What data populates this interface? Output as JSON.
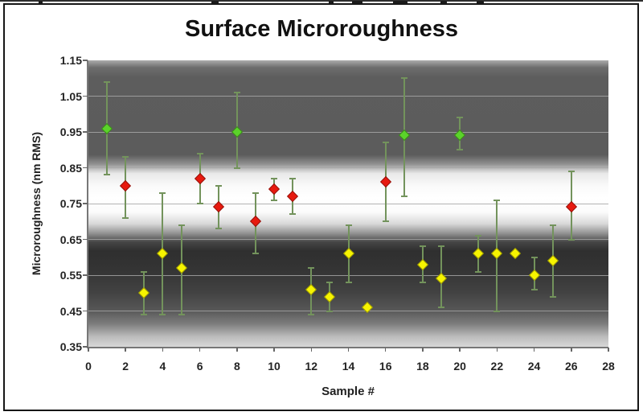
{
  "figure": {
    "title": "Surface Microroughness",
    "xlabel": "Sample #",
    "ylabel": "Microroughness (nm RMS)"
  },
  "chart_data": {
    "type": "scatter",
    "title": "Surface Microroughness",
    "xlabel": "Sample #",
    "ylabel": "Microroughness (nm RMS)",
    "xlim": [
      0,
      28
    ],
    "ylim": [
      0.35,
      1.15
    ],
    "x_ticks": [
      "0",
      "2",
      "4",
      "6",
      "8",
      "10",
      "12",
      "14",
      "16",
      "18",
      "20",
      "22",
      "24",
      "26",
      "28"
    ],
    "y_ticks": [
      "1.15",
      "1.05",
      "0.95",
      "0.85",
      "0.75",
      "0.65",
      "0.55",
      "0.45",
      "0.35"
    ],
    "grid": "horizontal gridlines every 0.10",
    "legend": "none",
    "marker": "diamond",
    "error_bars": "vertical, olive-green with caps",
    "marker_colors": {
      "green": "#5bd32a",
      "red": "#e71a0f",
      "yellow": "#f7f400"
    },
    "error_bar_color": "#73935c",
    "background_bands": [
      {
        "name": "upper-dark-band",
        "from": 1.15,
        "to": 0.86,
        "color": "#5c5c5c"
      },
      {
        "name": "middle-white-band",
        "from": 0.86,
        "to": 0.66,
        "color": "#ffffff"
      },
      {
        "name": "lower-dark-band",
        "from": 0.66,
        "to": 0.38,
        "color": "#3a3a3a"
      }
    ],
    "points": [
      {
        "sample": 1,
        "category": "green",
        "value": 0.96,
        "err_low": 0.83,
        "err_high": 1.09
      },
      {
        "sample": 2,
        "category": "red",
        "value": 0.8,
        "err_low": 0.71,
        "err_high": 0.88
      },
      {
        "sample": 3,
        "category": "yellow",
        "value": 0.5,
        "err_low": 0.44,
        "err_high": 0.56
      },
      {
        "sample": 4,
        "category": "yellow",
        "value": 0.61,
        "err_low": 0.44,
        "err_high": 0.78
      },
      {
        "sample": 5,
        "category": "yellow",
        "value": 0.57,
        "err_low": 0.44,
        "err_high": 0.69
      },
      {
        "sample": 6,
        "category": "red",
        "value": 0.82,
        "err_low": 0.75,
        "err_high": 0.89
      },
      {
        "sample": 7,
        "category": "red",
        "value": 0.74,
        "err_low": 0.68,
        "err_high": 0.8
      },
      {
        "sample": 8,
        "category": "green",
        "value": 0.95,
        "err_low": 0.85,
        "err_high": 1.06
      },
      {
        "sample": 9,
        "category": "red",
        "value": 0.7,
        "err_low": 0.61,
        "err_high": 0.78
      },
      {
        "sample": 10,
        "category": "red",
        "value": 0.79,
        "err_low": 0.76,
        "err_high": 0.82
      },
      {
        "sample": 11,
        "category": "red",
        "value": 0.77,
        "err_low": 0.72,
        "err_high": 0.82
      },
      {
        "sample": 12,
        "category": "yellow",
        "value": 0.51,
        "err_low": 0.44,
        "err_high": 0.57
      },
      {
        "sample": 13,
        "category": "yellow",
        "value": 0.49,
        "err_low": 0.45,
        "err_high": 0.53
      },
      {
        "sample": 14,
        "category": "yellow",
        "value": 0.61,
        "err_low": 0.53,
        "err_high": 0.69
      },
      {
        "sample": 15,
        "category": "yellow",
        "value": 0.46,
        "err_low": null,
        "err_high": null
      },
      {
        "sample": 16,
        "category": "red",
        "value": 0.81,
        "err_low": 0.7,
        "err_high": 0.92
      },
      {
        "sample": 17,
        "category": "green",
        "value": 0.94,
        "err_low": 0.77,
        "err_high": 1.1
      },
      {
        "sample": 18,
        "category": "yellow",
        "value": 0.58,
        "err_low": 0.53,
        "err_high": 0.63
      },
      {
        "sample": 19,
        "category": "yellow",
        "value": 0.54,
        "err_low": 0.46,
        "err_high": 0.63
      },
      {
        "sample": 20,
        "category": "green",
        "value": 0.94,
        "err_low": 0.9,
        "err_high": 0.99
      },
      {
        "sample": 21,
        "category": "yellow",
        "value": 0.61,
        "err_low": 0.56,
        "err_high": 0.66
      },
      {
        "sample": 22,
        "category": "yellow",
        "value": 0.61,
        "err_low": 0.45,
        "err_high": 0.76
      },
      {
        "sample": 23,
        "category": "yellow",
        "value": 0.61,
        "err_low": null,
        "err_high": null
      },
      {
        "sample": 24,
        "category": "yellow",
        "value": 0.55,
        "err_low": 0.51,
        "err_high": 0.6
      },
      {
        "sample": 25,
        "category": "yellow",
        "value": 0.59,
        "err_low": 0.49,
        "err_high": 0.69
      },
      {
        "sample": 26,
        "category": "red",
        "value": 0.74,
        "err_low": 0.65,
        "err_high": 0.84
      }
    ]
  }
}
